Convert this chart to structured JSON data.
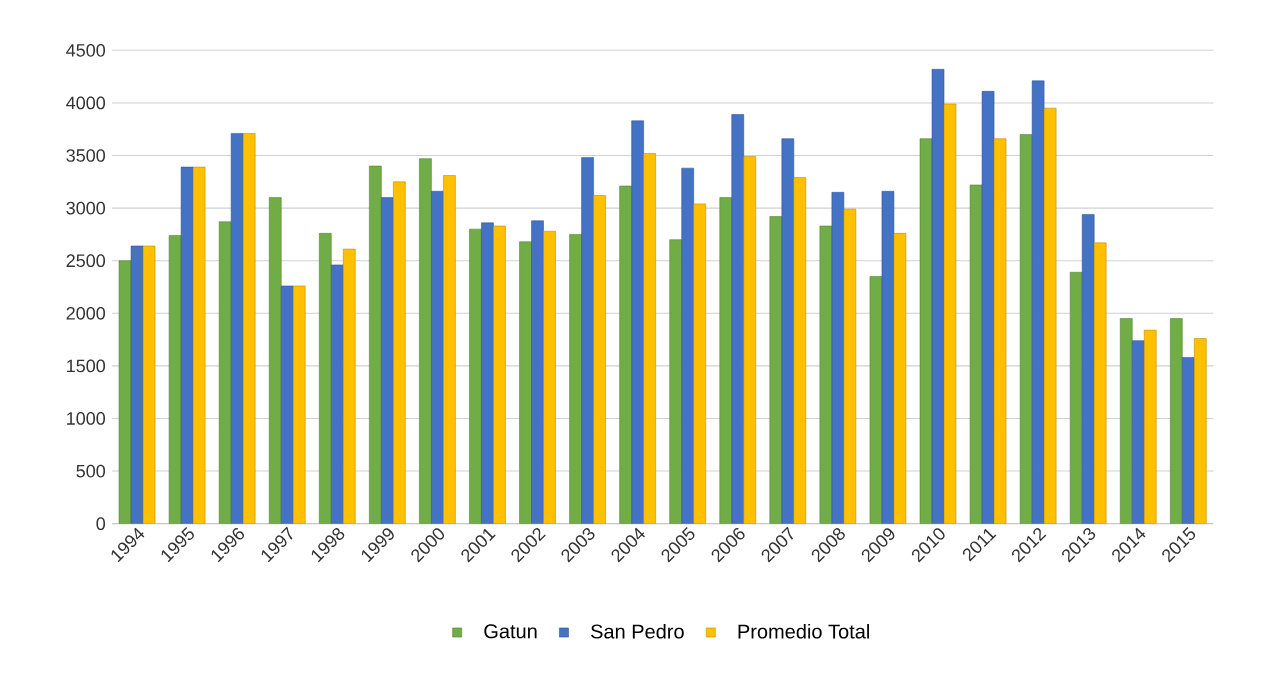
{
  "chart_data": {
    "type": "bar",
    "categories": [
      "1994",
      "1995",
      "1996",
      "1997",
      "1998",
      "1999",
      "2000",
      "2001",
      "2002",
      "2003",
      "2004",
      "2005",
      "2006",
      "2007",
      "2008",
      "2009",
      "2010",
      "2011",
      "2012",
      "2013",
      "2014",
      "2015"
    ],
    "series": [
      {
        "name": "Gatun",
        "color": "#70ad47",
        "values": [
          2500,
          2740,
          2870,
          3100,
          2760,
          3400,
          3470,
          2800,
          2680,
          2750,
          3210,
          2700,
          3100,
          2920,
          2830,
          2350,
          3660,
          3220,
          3700,
          2390,
          1950,
          1950
        ]
      },
      {
        "name": "San Pedro",
        "color": "#4472c4",
        "values": [
          2640,
          3390,
          3710,
          2260,
          2460,
          3100,
          3160,
          2860,
          2880,
          3480,
          3830,
          3380,
          3890,
          3660,
          3150,
          3160,
          4320,
          4110,
          4210,
          2940,
          1740,
          1580
        ]
      },
      {
        "name": "Promedio Total",
        "color": "#ffc000",
        "values": [
          2640,
          3390,
          3710,
          2260,
          2610,
          3250,
          3310,
          2830,
          2780,
          3120,
          3520,
          3040,
          3490,
          3290,
          2990,
          2760,
          3990,
          3660,
          3950,
          2670,
          1840,
          1760
        ]
      }
    ],
    "ylim": [
      0,
      4500
    ],
    "yticks": [
      0,
      500,
      1000,
      1500,
      2000,
      2500,
      3000,
      3500,
      4000,
      4500
    ],
    "grid": "y",
    "legend": "bottom"
  }
}
